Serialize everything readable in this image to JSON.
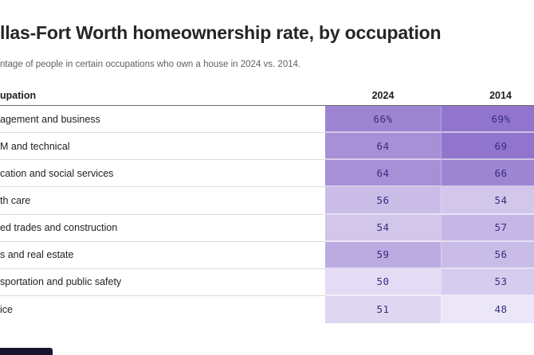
{
  "header": {
    "title": "llas-Fort Worth homeownership rate, by occupation",
    "subtitle": "ntage of people in certain occupations who own a house in 2024 vs. 2014."
  },
  "table": {
    "columns": {
      "occupation": "upation",
      "y2024": "2024",
      "y2014": "2014"
    },
    "rows": [
      {
        "label": "agement and business",
        "v2024": "66%",
        "v2014": "69%",
        "c2024": "#9e85d2",
        "c2014": "#9175cc"
      },
      {
        "label": "M and technical",
        "v2024": "64",
        "v2014": "69",
        "c2024": "#a790d6",
        "c2014": "#9175cc"
      },
      {
        "label": "cation and social services",
        "v2024": "64",
        "v2014": "66",
        "c2024": "#a790d6",
        "c2014": "#9e85d2"
      },
      {
        "label": "th care",
        "v2024": "56",
        "v2014": "54",
        "c2024": "#c9bce7",
        "c2014": "#d2c6eb"
      },
      {
        "label": "ed trades and construction",
        "v2024": "54",
        "v2014": "57",
        "c2024": "#d2c6eb",
        "c2014": "#c5b6e5"
      },
      {
        "label": "s and real estate",
        "v2024": "59",
        "v2014": "56",
        "c2024": "#bcabe1",
        "c2014": "#c9bce7"
      },
      {
        "label": "sportation and public safety",
        "v2024": "50",
        "v2014": "53",
        "c2024": "#e3dcf4",
        "c2014": "#d6cced"
      },
      {
        "label": "ice",
        "v2024": "51",
        "v2014": "48",
        "c2024": "#dfd7f2",
        "c2014": "#ece7f8"
      }
    ]
  },
  "colors": {
    "number_text": "#372c7f",
    "header_rule": "#6b6b6b",
    "row_divider": "#dcdcdc",
    "corner_bar": "#17142e"
  },
  "chart_data": {
    "type": "heatmap",
    "title": "llas-Fort Worth homeownership rate, by occupation",
    "subtitle": "ntage of people in certain occupations who own a house in 2024 vs. 2014.",
    "categories": [
      "agement and business",
      "M and technical",
      "cation and social services",
      "th care",
      "ed trades and construction",
      "s and real estate",
      "sportation and public safety",
      "ice"
    ],
    "series": [
      {
        "name": "2024",
        "values": [
          66,
          64,
          64,
          56,
          54,
          59,
          50,
          51
        ]
      },
      {
        "name": "2014",
        "values": [
          69,
          69,
          66,
          54,
          57,
          56,
          53,
          48
        ]
      }
    ],
    "value_format": "percent",
    "layout": {
      "legend": "none",
      "grid": "row-dividers",
      "color_scale": {
        "min_value": 48,
        "max_value": 69,
        "min_color": "#ece7f8",
        "max_color": "#9175cc"
      }
    }
  }
}
